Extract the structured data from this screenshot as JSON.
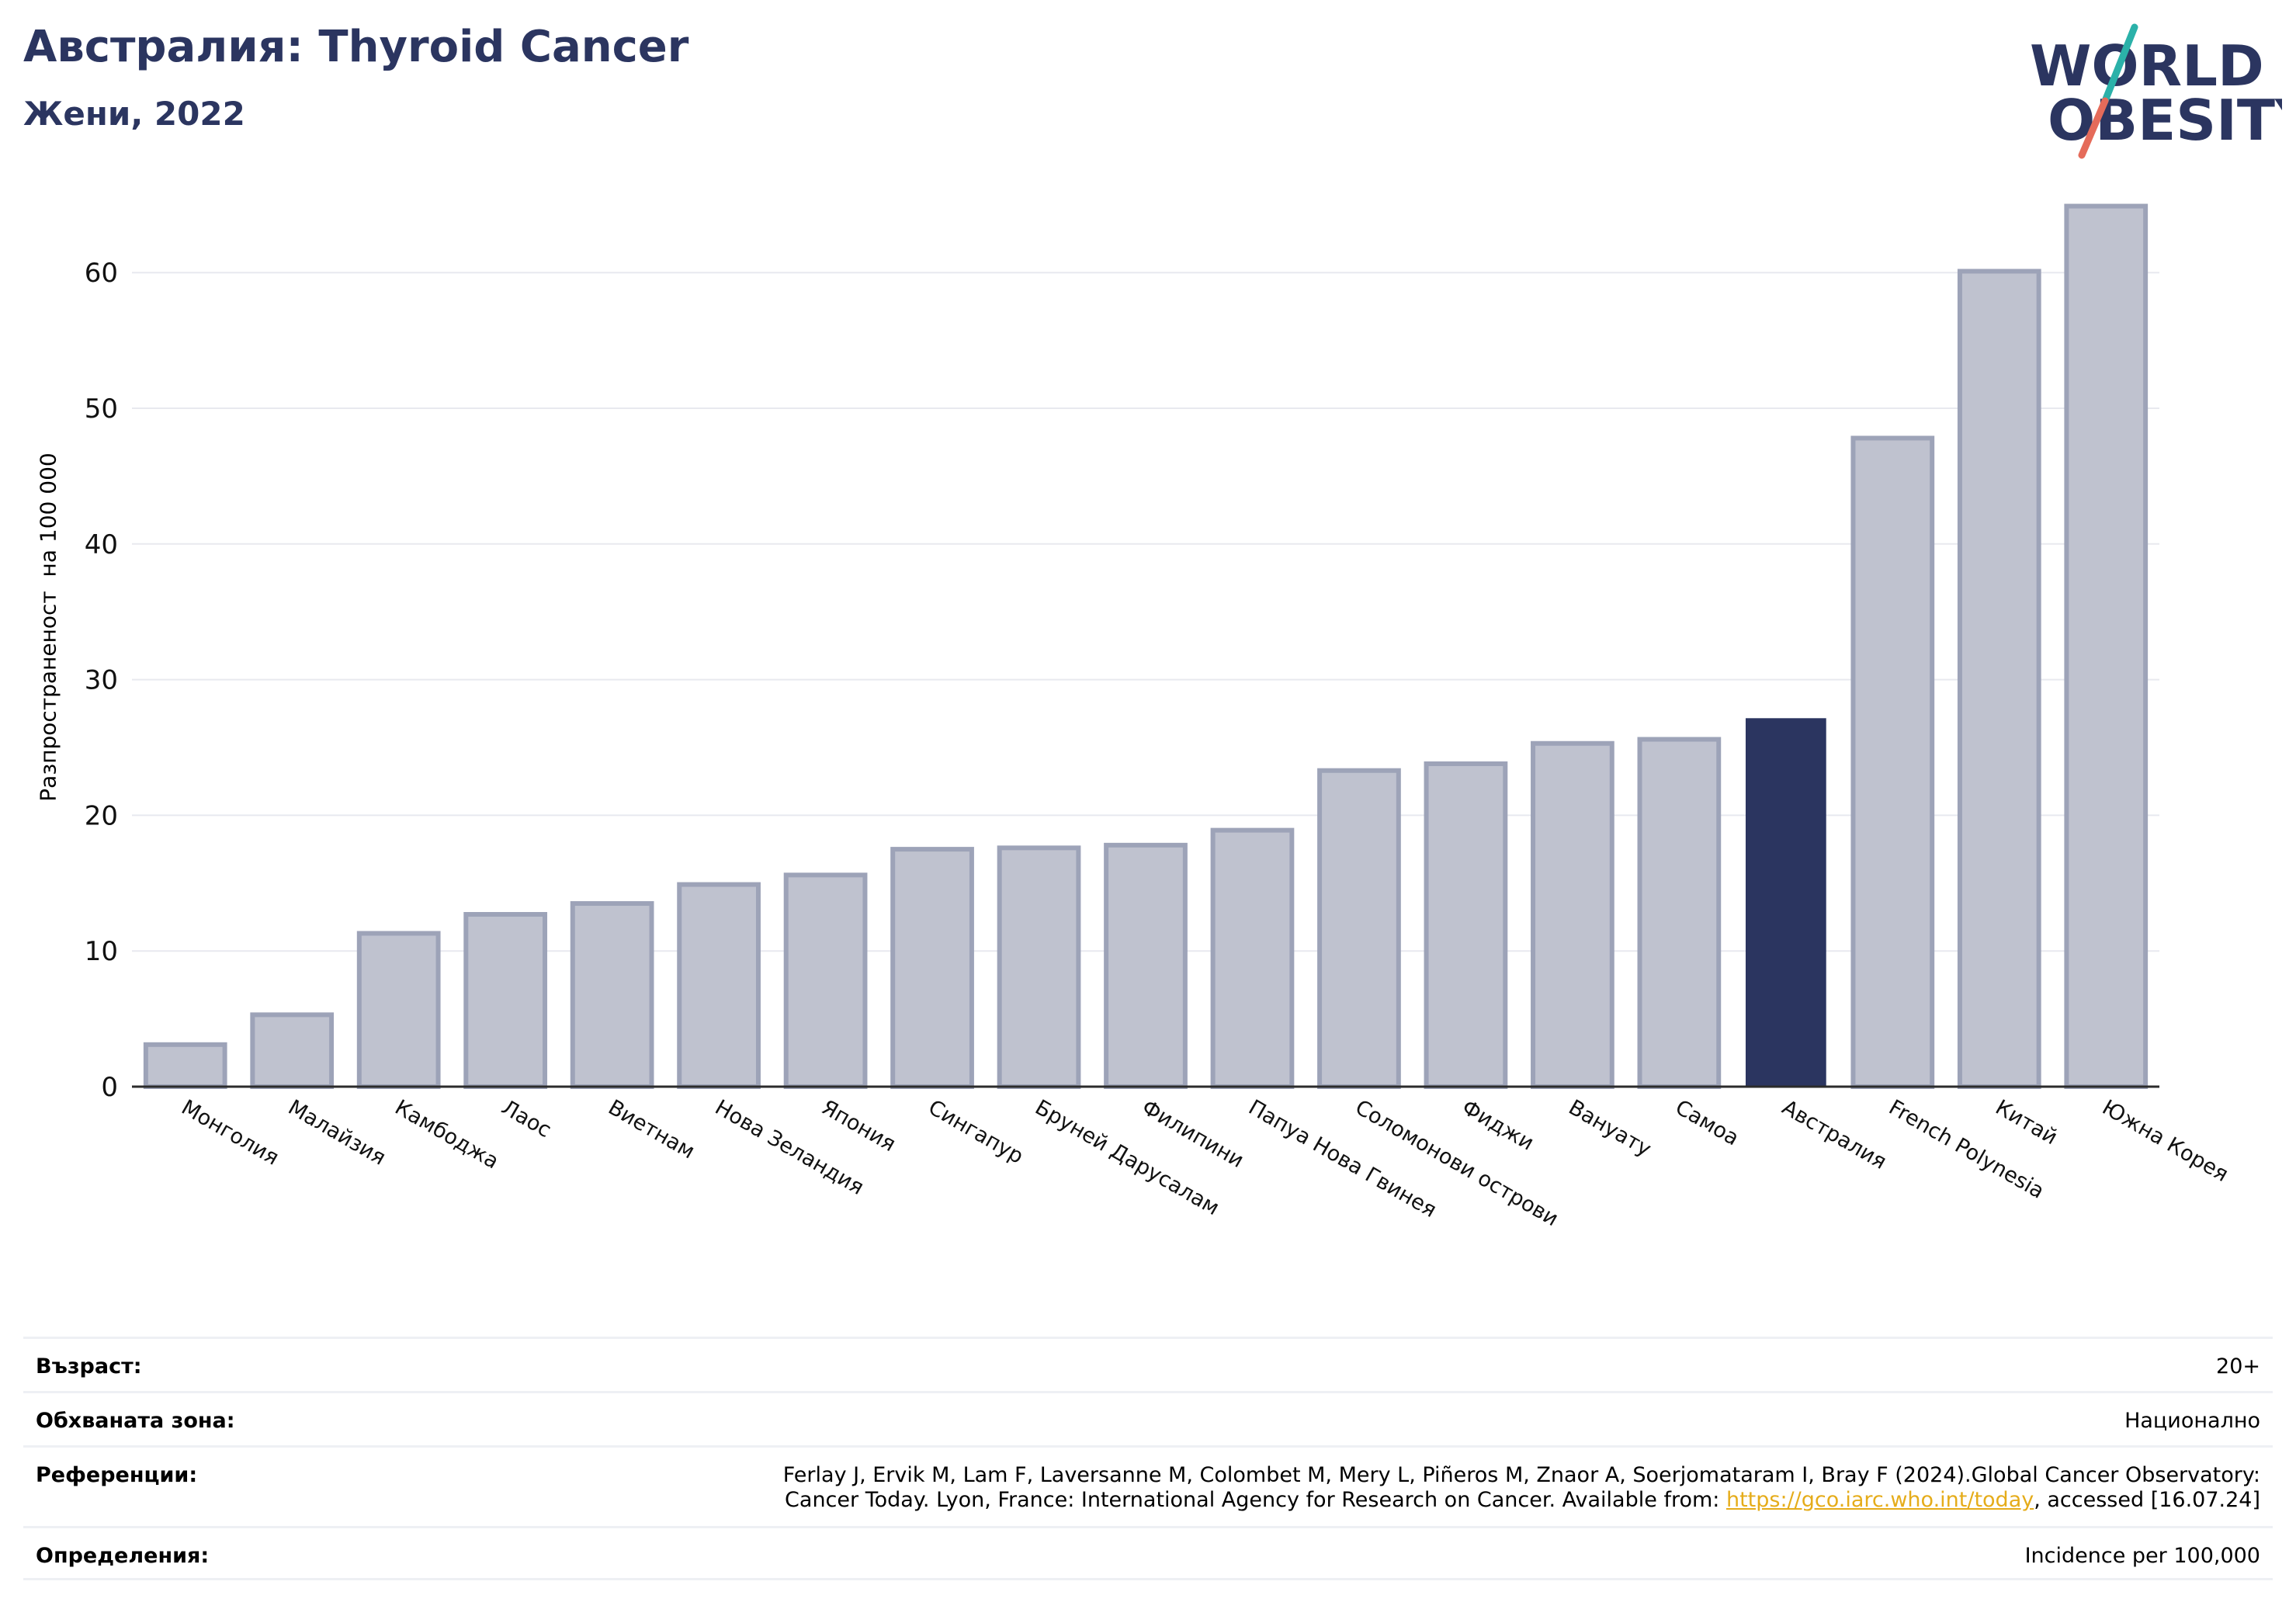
{
  "header": {
    "title": "Австралия: Thyroid Cancer",
    "subtitle": "Жени, 2022"
  },
  "logo": {
    "line1": "WORLD",
    "line2": "OBESITY"
  },
  "chart_data": {
    "type": "bar",
    "title": "Австралия: Thyroid Cancer",
    "subtitle": "Жени, 2022",
    "xlabel": "",
    "ylabel": "Разпространеност  на 100 000",
    "ylim": [
      0,
      66
    ],
    "yticks": [
      0,
      10,
      20,
      30,
      40,
      50,
      60
    ],
    "grid": true,
    "categories": [
      "Монголия",
      "Малайзия",
      "Камбоджа",
      "Лаос",
      "Виетнам",
      "Нова Зеландия",
      "Япония",
      "Сингапур",
      "Бруней Дарусалам",
      "Филипини",
      "Папуа Нова Гвинея",
      "Соломонови острови",
      "Фиджи",
      "Вануату",
      "Самоа",
      "Австралия",
      "French Polynesia",
      "Китай",
      "Южна Корея"
    ],
    "values": [
      3.1,
      5.3,
      11.3,
      12.7,
      13.5,
      14.9,
      15.6,
      17.5,
      17.6,
      17.8,
      18.9,
      23.3,
      23.8,
      25.3,
      25.6,
      27.1,
      47.8,
      60.1,
      64.9
    ],
    "highlight": "Австралия",
    "colors": {
      "bar": "#bfc2cf",
      "bar_edge": "#9da3b8",
      "highlight": "#2b3560"
    }
  },
  "meta": {
    "age_label": "Възраст:",
    "age_value": "20+",
    "area_label": "Обхваната зона:",
    "area_value": "Национално",
    "refs_label": "Референции:",
    "refs_line1": "Ferlay J, Ervik M, Lam F, Laversanne M, Colombet M, Mery L, Piñeros M, Znaor A, Soerjomataram I, Bray F (2024).Global Cancer Observatory:",
    "refs_line2_pre": "Cancer Today. Lyon, France: International Agency for Research on Cancer. Available from: ",
    "refs_link": "https://gco.iarc.who.int/today",
    "refs_line2_post": ", accessed [16.07.24]",
    "defs_label": "Определения:",
    "defs_value": "Incidence per 100,000"
  }
}
